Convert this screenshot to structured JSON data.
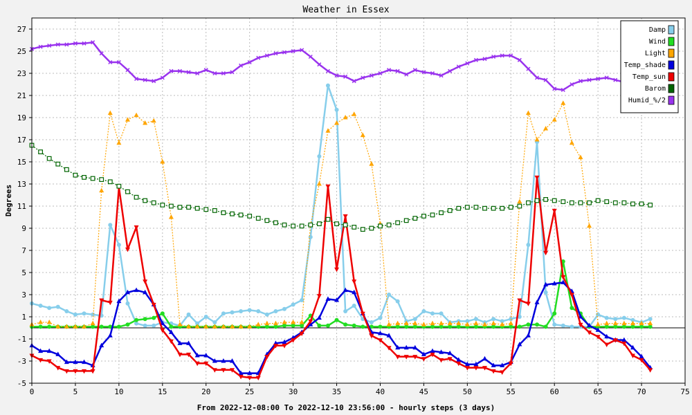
{
  "chart_data": {
    "type": "line",
    "title": "Weather in Essex",
    "xlabel": "From 2022-12-08:00 To 2022-12-10 23:56:00 - hourly steps (3 days)",
    "ylabel": "Degrees",
    "xlim": [
      0,
      75
    ],
    "ylim": [
      -5,
      28
    ],
    "xticks": [
      0,
      5,
      10,
      15,
      20,
      25,
      30,
      35,
      40,
      45,
      50,
      55,
      60,
      65,
      70,
      75
    ],
    "yticks": [
      -5,
      -3,
      -1,
      1,
      3,
      5,
      7,
      9,
      11,
      13,
      15,
      17,
      19,
      21,
      23,
      25,
      27
    ],
    "grid": true,
    "legend_position": "top-right",
    "reference_line_y": 0,
    "series": [
      {
        "name": "Damp",
        "color": "#87ceeb",
        "marker": "circle",
        "dashed": false,
        "values": [
          2.2,
          2.0,
          1.8,
          1.9,
          1.5,
          1.2,
          1.3,
          1.2,
          1.1,
          9.3,
          7.5,
          2.2,
          0.4,
          0.2,
          0.2,
          0.5,
          0.4,
          0.2,
          1.2,
          0.4,
          1.0,
          0.5,
          1.3,
          1.4,
          1.5,
          1.6,
          1.5,
          1.2,
          1.5,
          1.7,
          2.1,
          2.5,
          8.2,
          15.5,
          21.9,
          19.7,
          1.5,
          2.0,
          0.8,
          0.5,
          0.9,
          3.0,
          2.4,
          0.6,
          0.8,
          1.5,
          1.3,
          1.3,
          0.5,
          0.6,
          0.6,
          0.8,
          0.5,
          0.8,
          0.6,
          0.8,
          1.0,
          7.5,
          16.8,
          3.2,
          0.3,
          0.2,
          0.1,
          0.1,
          0.1,
          1.2,
          0.9,
          0.8,
          0.9,
          0.7,
          0.5,
          0.8
        ]
      },
      {
        "name": "Wind",
        "color": "#22dd22",
        "marker": "circle",
        "dashed": false,
        "values": [
          0.1,
          0.1,
          0.1,
          0.1,
          0.1,
          0.1,
          0.1,
          0.1,
          0.1,
          0.1,
          0.1,
          0.3,
          0.7,
          0.8,
          0.9,
          1.3,
          0.1,
          0.1,
          0.1,
          0.1,
          0.1,
          0.1,
          0.1,
          0.1,
          0.1,
          0.1,
          0.1,
          0.1,
          0.1,
          0.2,
          0.2,
          0.2,
          1.1,
          0.2,
          0.2,
          0.7,
          0.3,
          0.2,
          0.1,
          0.1,
          0.1,
          0.1,
          0.1,
          0.1,
          0.1,
          0.1,
          0.1,
          0.1,
          0.1,
          0.1,
          0.1,
          0.1,
          0.1,
          0.1,
          0.1,
          0.1,
          0.1,
          0.3,
          0.3,
          0.1,
          1.3,
          6.0,
          1.8,
          1.3,
          0.1,
          0.1,
          0.1,
          0.1,
          0.1,
          0.1,
          0.1,
          0.1
        ]
      },
      {
        "name": "Light",
        "color": "#ffa500",
        "marker": "triangle-up",
        "dashed": true,
        "values": [
          0.3,
          0.5,
          0.5,
          0.1,
          0.1,
          0.1,
          0.1,
          0.4,
          12.4,
          19.4,
          16.7,
          18.8,
          19.2,
          18.5,
          18.7,
          15.0,
          10.0,
          0.3,
          0.1,
          0.1,
          0.1,
          0.1,
          0.1,
          0.1,
          0.1,
          0.1,
          0.3,
          0.4,
          0.4,
          0.5,
          0.5,
          0.5,
          9.3,
          13.0,
          17.8,
          18.5,
          19.0,
          19.3,
          17.4,
          14.8,
          9.4,
          0.3,
          0.4,
          0.4,
          0.4,
          0.3,
          0.4,
          0.4,
          0.4,
          0.4,
          0.3,
          0.4,
          0.3,
          0.4,
          0.3,
          0.4,
          11.4,
          19.4,
          17.0,
          18.0,
          18.8,
          20.3,
          16.7,
          15.4,
          9.2,
          0.3,
          0.4,
          0.4,
          0.4,
          0.4,
          0.4,
          0.4
        ]
      },
      {
        "name": "Temp_shade",
        "color": "#0000dd",
        "marker": "triangle-up",
        "dashed": false,
        "values": [
          -1.6,
          -2.1,
          -2.1,
          -2.4,
          -3.1,
          -3.1,
          -3.1,
          -3.4,
          -1.6,
          -0.7,
          2.4,
          3.2,
          3.4,
          3.2,
          2.1,
          0.4,
          -0.4,
          -1.4,
          -1.4,
          -2.5,
          -2.5,
          -3.0,
          -3.0,
          -3.0,
          -4.1,
          -4.1,
          -4.1,
          -2.4,
          -1.4,
          -1.3,
          -0.9,
          -0.4,
          0.3,
          0.9,
          2.6,
          2.5,
          3.4,
          3.2,
          1.3,
          -0.4,
          -0.5,
          -0.7,
          -1.8,
          -1.8,
          -1.8,
          -2.4,
          -2.1,
          -2.2,
          -2.3,
          -2.9,
          -3.3,
          -3.3,
          -2.8,
          -3.4,
          -3.4,
          -3.1,
          -1.5,
          -0.7,
          2.3,
          3.9,
          4.0,
          4.1,
          3.3,
          1.0,
          0.2,
          -0.2,
          -0.8,
          -1.1,
          -1.1,
          -1.8,
          -2.6,
          -3.6
        ]
      },
      {
        "name": "Temp_sun",
        "color": "#ee0000",
        "marker": "triangle-down",
        "dashed": false,
        "values": [
          -2.5,
          -2.9,
          -3.0,
          -3.6,
          -3.9,
          -3.9,
          -3.9,
          -3.9,
          2.5,
          2.3,
          12.7,
          7.1,
          9.1,
          4.2,
          2.1,
          -0.2,
          -1.2,
          -2.4,
          -2.4,
          -3.2,
          -3.2,
          -3.8,
          -3.8,
          -3.8,
          -4.4,
          -4.5,
          -4.5,
          -2.6,
          -1.6,
          -1.6,
          -1.1,
          -0.5,
          0.6,
          2.9,
          12.8,
          5.3,
          10.1,
          4.2,
          1.3,
          -0.7,
          -1.1,
          -1.8,
          -2.6,
          -2.6,
          -2.6,
          -2.8,
          -2.4,
          -2.9,
          -2.8,
          -3.2,
          -3.6,
          -3.6,
          -3.6,
          -3.9,
          -4.0,
          -3.2,
          2.5,
          2.2,
          13.6,
          6.8,
          10.6,
          4.6,
          3.0,
          0.3,
          -0.4,
          -0.8,
          -1.5,
          -1.1,
          -1.4,
          -2.5,
          -2.9,
          -3.8
        ]
      },
      {
        "name": "Barom",
        "color": "#006400",
        "marker": "square-open",
        "dashed": true,
        "values": [
          16.5,
          15.9,
          15.3,
          14.8,
          14.3,
          13.8,
          13.6,
          13.5,
          13.4,
          13.2,
          12.8,
          12.3,
          11.8,
          11.5,
          11.3,
          11.1,
          11.0,
          10.9,
          10.9,
          10.8,
          10.7,
          10.6,
          10.4,
          10.3,
          10.2,
          10.1,
          9.9,
          9.7,
          9.5,
          9.3,
          9.2,
          9.2,
          9.3,
          9.4,
          9.8,
          9.4,
          9.3,
          9.1,
          8.9,
          9.0,
          9.2,
          9.3,
          9.5,
          9.7,
          9.9,
          10.1,
          10.2,
          10.4,
          10.6,
          10.8,
          10.9,
          10.9,
          10.8,
          10.8,
          10.8,
          10.9,
          11.0,
          11.3,
          11.5,
          11.6,
          11.5,
          11.4,
          11.3,
          11.3,
          11.3,
          11.5,
          11.4,
          11.3,
          11.3,
          11.2,
          11.2,
          11.1
        ]
      },
      {
        "name": "Humid_%/2",
        "color": "#9933ee",
        "marker": "x",
        "dashed": false,
        "values": [
          25.2,
          25.4,
          25.5,
          25.6,
          25.6,
          25.7,
          25.7,
          25.8,
          24.8,
          24.0,
          24.0,
          23.3,
          22.5,
          22.4,
          22.3,
          22.6,
          23.2,
          23.2,
          23.1,
          23.0,
          23.3,
          23.0,
          23.0,
          23.1,
          23.7,
          24.0,
          24.4,
          24.6,
          24.8,
          24.9,
          25.0,
          25.1,
          24.5,
          23.8,
          23.2,
          22.8,
          22.7,
          22.3,
          22.6,
          22.8,
          23.0,
          23.3,
          23.2,
          22.9,
          23.3,
          23.1,
          23.0,
          22.8,
          23.2,
          23.6,
          23.9,
          24.2,
          24.3,
          24.5,
          24.6,
          24.6,
          24.2,
          23.4,
          22.6,
          22.4,
          21.6,
          21.5,
          22.0,
          22.3,
          22.4,
          22.5,
          22.6,
          22.4,
          22.2,
          22.0,
          21.8,
          21.7
        ]
      }
    ]
  }
}
